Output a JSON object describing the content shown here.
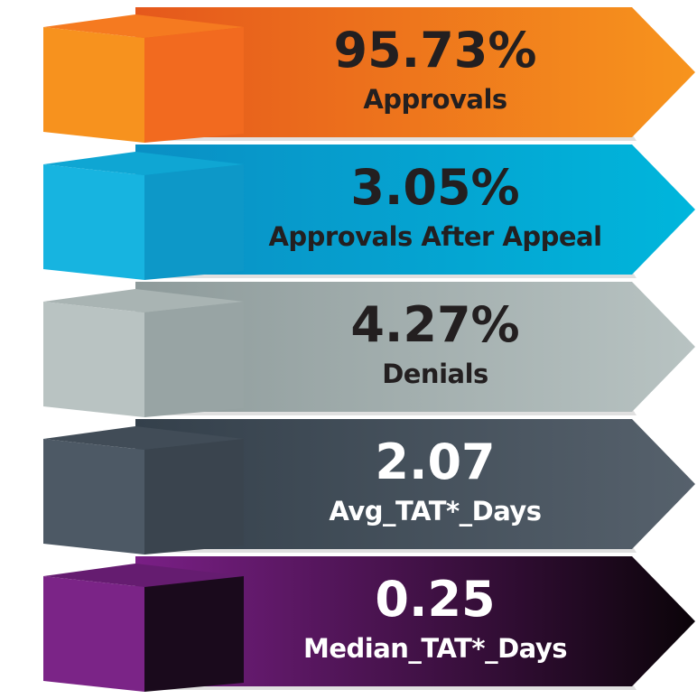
{
  "items": [
    {
      "value": "95.73%",
      "label": "Approvals"
    },
    {
      "value": "3.05%",
      "label": "Approvals After Appeal"
    },
    {
      "value": "4.27%",
      "label": "Denials"
    },
    {
      "value": "2.07",
      "label": "Avg_TAT*_Days"
    },
    {
      "value": "0.25",
      "label": "Median_TAT*_Days"
    }
  ]
}
